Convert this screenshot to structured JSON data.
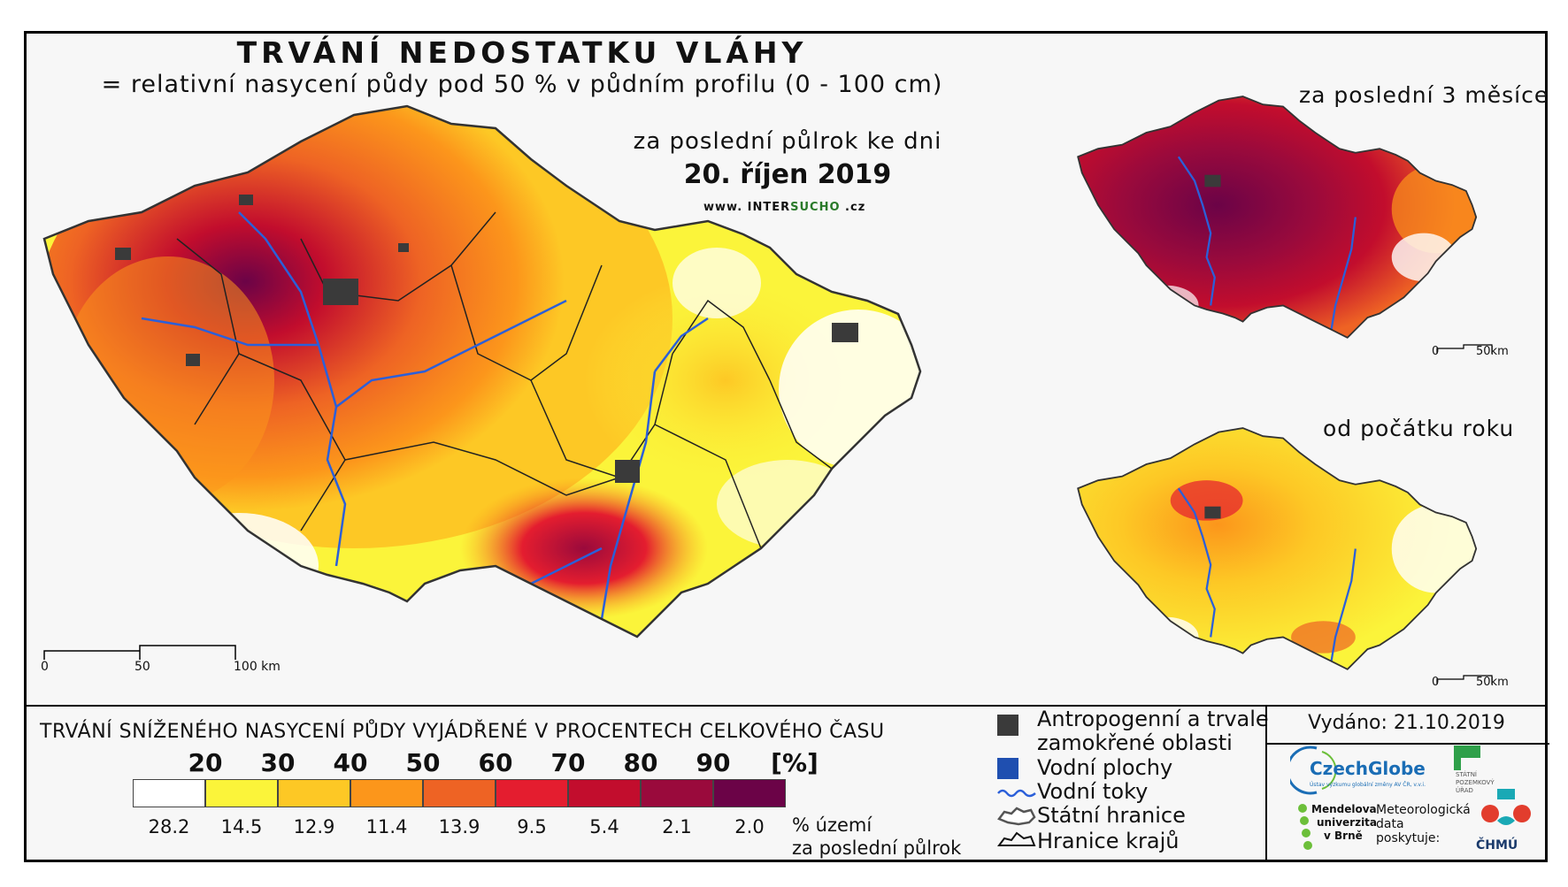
{
  "title": "TRVÁNÍ NEDOSTATKU VLÁHY",
  "subtitle": "= relativní nasycení půdy pod 50 % v půdním profilu (0 - 100 cm)",
  "main_period": "za poslední půlrok ke dni",
  "main_date": "20. říjen 2019",
  "website": {
    "prefix": "www. INTER",
    "brand": "SUCHO",
    "suffix": " .cz"
  },
  "inset_3m_title": "za poslední 3 měsíce",
  "inset_ytd_title": "od počátku roku",
  "scale_main": {
    "zero": "0",
    "mid": "50",
    "max": "100 km"
  },
  "scale_inset": {
    "zero": "0",
    "max": "50km"
  },
  "legend": {
    "title": "TRVÁNÍ SNÍŽENÉHO NASYCENÍ PŮDY VYJÁDŘENÉ V PROCENTECH CELKOVÉHO ČASU",
    "thresholds": [
      "20",
      "30",
      "40",
      "50",
      "60",
      "70",
      "80",
      "90",
      "[%]"
    ],
    "classes": [
      {
        "color": "#ffffff",
        "share": "28.2"
      },
      {
        "color": "#fbf43a",
        "share": "14.5"
      },
      {
        "color": "#fdc825",
        "share": "12.9"
      },
      {
        "color": "#fc961b",
        "share": "11.4"
      },
      {
        "color": "#ee6324",
        "share": "13.9"
      },
      {
        "color": "#e41d2f",
        "share": "9.5"
      },
      {
        "color": "#c20d2d",
        "share": "5.4"
      },
      {
        "color": "#9a0a3c",
        "share": "2.1"
      },
      {
        "color": "#6b0347",
        "share": "2.0"
      }
    ],
    "share_caption_1": "% území",
    "share_caption_2": "za poslední půlrok"
  },
  "map_legend": {
    "anthropogenic_1": "Antropogenní a trvale",
    "anthropogenic_2": "zamokřené oblasti",
    "water_bodies": "Vodní plochy",
    "rivers": "Vodní toky",
    "state_border": "Státní hranice",
    "region_border": "Hranice krajů"
  },
  "issued": "Vydáno: 21.10.2019",
  "logos": {
    "czechglobe": "CzechGlobe",
    "czechglobe_sub": "Ústav výzkumu globální změny AV ČR, v.v.i.",
    "spu_1": "STÁTNÍ",
    "spu_2": "POZEMKOVÝ",
    "spu_3": "ÚŘAD",
    "mendelu_1": "Mendelova",
    "mendelu_2": "univerzita",
    "mendelu_3": "v Brně",
    "met_1": "Meteorologická",
    "met_2": "data",
    "met_3": "poskytuje:",
    "chmu": "ČHMÚ"
  },
  "colors": {
    "river": "#2b5fd9",
    "water": "#1f4fb0",
    "anthropogenic": "#3a3a3a",
    "czechglobe_blue": "#1a6db5",
    "mendelu_green": "#6cbf3a",
    "chmu_red": "#e23d2d",
    "chmu_teal": "#1aa9b5"
  }
}
